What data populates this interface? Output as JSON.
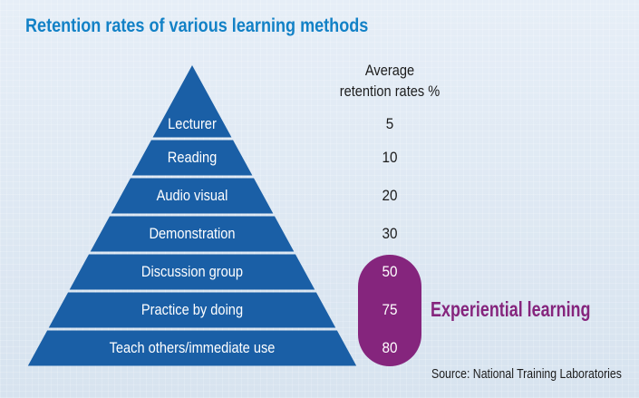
{
  "title": "Retention rates of various learning methods",
  "column_header": {
    "line1": "Average",
    "line2": "retention rates %"
  },
  "tiers": [
    {
      "method": "Lecturer",
      "rate": "5"
    },
    {
      "method": "Reading",
      "rate": "10"
    },
    {
      "method": "Audio visual",
      "rate": "20"
    },
    {
      "method": "Demonstration",
      "rate": "30"
    },
    {
      "method": "Discussion group",
      "rate": "50"
    },
    {
      "method": "Practice by doing",
      "rate": "75"
    },
    {
      "method": "Teach others/immediate use",
      "rate": "80"
    }
  ],
  "highlight_label": "Experiential learning",
  "source": "Source: National Training Laboratories",
  "colors": {
    "title": "#1281c6",
    "pyramid": "#1a5fa6",
    "highlight": "#85257d",
    "background": "#dde7f2"
  }
}
